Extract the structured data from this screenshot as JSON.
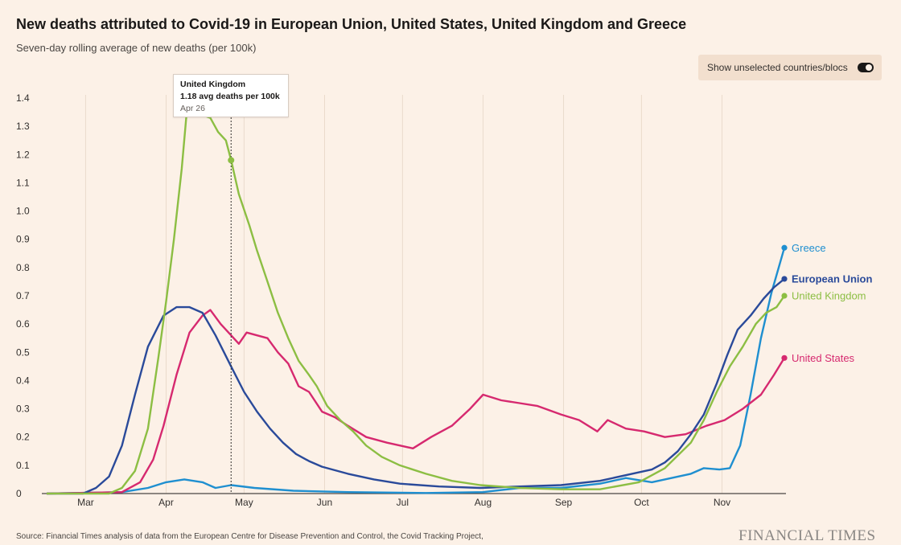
{
  "header": {
    "title": "New deaths attributed to Covid-19 in European Union, United States, United Kingdom and Greece",
    "subtitle": "Seven-day rolling average of new deaths (per 100k)"
  },
  "toggle": {
    "label": "Show unselected countries/blocs",
    "state": "on"
  },
  "tooltip": {
    "name": "United Kingdom",
    "value": "1.18 avg deaths per 100k",
    "date": "Apr 26"
  },
  "footer": {
    "source": "Source: Financial Times analysis of data from the European Centre for Disease Prevention and Control, the Covid Tracking Project,",
    "brand": "FINANCIAL TIMES"
  },
  "chart_data": {
    "type": "line",
    "title": "New deaths attributed to Covid-19 in European Union, United States, United Kingdom and Greece",
    "subtitle": "Seven-day rolling average of new deaths (per 100k)",
    "x_range": [
      "2020-02-15",
      "2020-11-25"
    ],
    "ylim": [
      0,
      1.4
    ],
    "yticks": [
      "0",
      "0.1",
      "0.2",
      "0.3",
      "0.4",
      "0.5",
      "0.6",
      "0.7",
      "0.8",
      "0.9",
      "1.0",
      "1.1",
      "1.2",
      "1.3",
      "1.4"
    ],
    "xticks": [
      {
        "label": "Mar",
        "date": "2020-03-01"
      },
      {
        "label": "Apr",
        "date": "2020-04-01"
      },
      {
        "label": "May",
        "date": "2020-05-01"
      },
      {
        "label": "Jun",
        "date": "2020-06-01"
      },
      {
        "label": "Jul",
        "date": "2020-07-01"
      },
      {
        "label": "Aug",
        "date": "2020-08-01"
      },
      {
        "label": "Sep",
        "date": "2020-09-01"
      },
      {
        "label": "Oct",
        "date": "2020-10-01"
      },
      {
        "label": "Nov",
        "date": "2020-11-01"
      }
    ],
    "grid": "vertical at months",
    "highlight": {
      "series": "United Kingdom",
      "date": "2020-04-26",
      "value": 1.18
    },
    "series": [
      {
        "name": "European Union",
        "color": "#2a4a9a",
        "points": [
          [
            "2020-02-15",
            0
          ],
          [
            "2020-02-29",
            0
          ],
          [
            "2020-03-05",
            0.02
          ],
          [
            "2020-03-10",
            0.06
          ],
          [
            "2020-03-15",
            0.17
          ],
          [
            "2020-03-20",
            0.35
          ],
          [
            "2020-03-25",
            0.52
          ],
          [
            "2020-03-31",
            0.63
          ],
          [
            "2020-04-05",
            0.66
          ],
          [
            "2020-04-10",
            0.66
          ],
          [
            "2020-04-15",
            0.64
          ],
          [
            "2020-04-20",
            0.56
          ],
          [
            "2020-04-26",
            0.45
          ],
          [
            "2020-05-01",
            0.36
          ],
          [
            "2020-05-06",
            0.29
          ],
          [
            "2020-05-11",
            0.23
          ],
          [
            "2020-05-16",
            0.18
          ],
          [
            "2020-05-21",
            0.14
          ],
          [
            "2020-05-26",
            0.115
          ],
          [
            "2020-05-31",
            0.095
          ],
          [
            "2020-06-10",
            0.07
          ],
          [
            "2020-06-20",
            0.05
          ],
          [
            "2020-06-30",
            0.035
          ],
          [
            "2020-07-15",
            0.025
          ],
          [
            "2020-07-31",
            0.02
          ],
          [
            "2020-08-15",
            0.025
          ],
          [
            "2020-08-31",
            0.03
          ],
          [
            "2020-09-15",
            0.045
          ],
          [
            "2020-09-30",
            0.075
          ],
          [
            "2020-10-05",
            0.085
          ],
          [
            "2020-10-10",
            0.11
          ],
          [
            "2020-10-15",
            0.15
          ],
          [
            "2020-10-20",
            0.21
          ],
          [
            "2020-10-25",
            0.28
          ],
          [
            "2020-10-30",
            0.39
          ],
          [
            "2020-11-03",
            0.49
          ],
          [
            "2020-11-07",
            0.58
          ],
          [
            "2020-11-12",
            0.63
          ],
          [
            "2020-11-17",
            0.69
          ],
          [
            "2020-11-21",
            0.73
          ],
          [
            "2020-11-25",
            0.76
          ]
        ]
      },
      {
        "name": "United Kingdom",
        "color": "#8cbe43",
        "points": [
          [
            "2020-02-15",
            0
          ],
          [
            "2020-03-10",
            0
          ],
          [
            "2020-03-15",
            0.02
          ],
          [
            "2020-03-20",
            0.08
          ],
          [
            "2020-03-25",
            0.23
          ],
          [
            "2020-03-29",
            0.48
          ],
          [
            "2020-04-01",
            0.68
          ],
          [
            "2020-04-04",
            0.9
          ],
          [
            "2020-04-07",
            1.15
          ],
          [
            "2020-04-09",
            1.36
          ],
          [
            "2020-04-12",
            1.45
          ],
          [
            "2020-04-15",
            1.34
          ],
          [
            "2020-04-18",
            1.33
          ],
          [
            "2020-04-21",
            1.28
          ],
          [
            "2020-04-24",
            1.25
          ],
          [
            "2020-04-26",
            1.18
          ],
          [
            "2020-04-29",
            1.06
          ],
          [
            "2020-05-03",
            0.95
          ],
          [
            "2020-05-06",
            0.86
          ],
          [
            "2020-05-10",
            0.75
          ],
          [
            "2020-05-14",
            0.64
          ],
          [
            "2020-05-18",
            0.55
          ],
          [
            "2020-05-22",
            0.47
          ],
          [
            "2020-05-26",
            0.42
          ],
          [
            "2020-05-29",
            0.38
          ],
          [
            "2020-06-02",
            0.31
          ],
          [
            "2020-06-07",
            0.26
          ],
          [
            "2020-06-12",
            0.22
          ],
          [
            "2020-06-17",
            0.17
          ],
          [
            "2020-06-23",
            0.13
          ],
          [
            "2020-06-30",
            0.1
          ],
          [
            "2020-07-10",
            0.07
          ],
          [
            "2020-07-20",
            0.045
          ],
          [
            "2020-07-31",
            0.03
          ],
          [
            "2020-08-15",
            0.02
          ],
          [
            "2020-08-31",
            0.015
          ],
          [
            "2020-09-15",
            0.015
          ],
          [
            "2020-09-30",
            0.04
          ],
          [
            "2020-10-10",
            0.09
          ],
          [
            "2020-10-20",
            0.18
          ],
          [
            "2020-10-25",
            0.26
          ],
          [
            "2020-10-30",
            0.36
          ],
          [
            "2020-11-04",
            0.45
          ],
          [
            "2020-11-09",
            0.52
          ],
          [
            "2020-11-14",
            0.6
          ],
          [
            "2020-11-18",
            0.64
          ],
          [
            "2020-11-22",
            0.66
          ],
          [
            "2020-11-25",
            0.7
          ]
        ]
      },
      {
        "name": "United States",
        "color": "#d6296f",
        "points": [
          [
            "2020-02-15",
            0
          ],
          [
            "2020-03-15",
            0.005
          ],
          [
            "2020-03-22",
            0.04
          ],
          [
            "2020-03-27",
            0.12
          ],
          [
            "2020-03-31",
            0.24
          ],
          [
            "2020-04-05",
            0.42
          ],
          [
            "2020-04-10",
            0.57
          ],
          [
            "2020-04-15",
            0.63
          ],
          [
            "2020-04-18",
            0.65
          ],
          [
            "2020-04-22",
            0.6
          ],
          [
            "2020-04-26",
            0.56
          ],
          [
            "2020-04-29",
            0.53
          ],
          [
            "2020-05-02",
            0.57
          ],
          [
            "2020-05-06",
            0.56
          ],
          [
            "2020-05-10",
            0.55
          ],
          [
            "2020-05-14",
            0.5
          ],
          [
            "2020-05-18",
            0.46
          ],
          [
            "2020-05-22",
            0.38
          ],
          [
            "2020-05-26",
            0.36
          ],
          [
            "2020-05-31",
            0.29
          ],
          [
            "2020-06-05",
            0.27
          ],
          [
            "2020-06-10",
            0.24
          ],
          [
            "2020-06-17",
            0.2
          ],
          [
            "2020-06-25",
            0.18
          ],
          [
            "2020-07-05",
            0.16
          ],
          [
            "2020-07-12",
            0.2
          ],
          [
            "2020-07-20",
            0.24
          ],
          [
            "2020-07-27",
            0.3
          ],
          [
            "2020-08-01",
            0.35
          ],
          [
            "2020-08-08",
            0.33
          ],
          [
            "2020-08-15",
            0.32
          ],
          [
            "2020-08-22",
            0.31
          ],
          [
            "2020-08-31",
            0.28
          ],
          [
            "2020-09-07",
            0.26
          ],
          [
            "2020-09-14",
            0.22
          ],
          [
            "2020-09-18",
            0.26
          ],
          [
            "2020-09-25",
            0.23
          ],
          [
            "2020-10-02",
            0.22
          ],
          [
            "2020-10-10",
            0.2
          ],
          [
            "2020-10-18",
            0.21
          ],
          [
            "2020-10-26",
            0.24
          ],
          [
            "2020-11-02",
            0.26
          ],
          [
            "2020-11-09",
            0.3
          ],
          [
            "2020-11-16",
            0.35
          ],
          [
            "2020-11-21",
            0.42
          ],
          [
            "2020-11-25",
            0.48
          ]
        ]
      },
      {
        "name": "Greece",
        "color": "#1f8fd0",
        "points": [
          [
            "2020-02-15",
            0
          ],
          [
            "2020-03-15",
            0.005
          ],
          [
            "2020-03-25",
            0.02
          ],
          [
            "2020-04-01",
            0.04
          ],
          [
            "2020-04-08",
            0.05
          ],
          [
            "2020-04-15",
            0.04
          ],
          [
            "2020-04-20",
            0.02
          ],
          [
            "2020-04-26",
            0.03
          ],
          [
            "2020-05-05",
            0.02
          ],
          [
            "2020-05-20",
            0.01
          ],
          [
            "2020-06-10",
            0.005
          ],
          [
            "2020-07-10",
            0.002
          ],
          [
            "2020-08-01",
            0.005
          ],
          [
            "2020-08-15",
            0.02
          ],
          [
            "2020-08-31",
            0.02
          ],
          [
            "2020-09-15",
            0.035
          ],
          [
            "2020-09-25",
            0.055
          ],
          [
            "2020-10-05",
            0.04
          ],
          [
            "2020-10-20",
            0.07
          ],
          [
            "2020-10-25",
            0.09
          ],
          [
            "2020-10-31",
            0.085
          ],
          [
            "2020-11-04",
            0.09
          ],
          [
            "2020-11-08",
            0.17
          ],
          [
            "2020-11-12",
            0.35
          ],
          [
            "2020-11-16",
            0.55
          ],
          [
            "2020-11-20",
            0.71
          ],
          [
            "2020-11-25",
            0.87
          ]
        ]
      }
    ]
  }
}
